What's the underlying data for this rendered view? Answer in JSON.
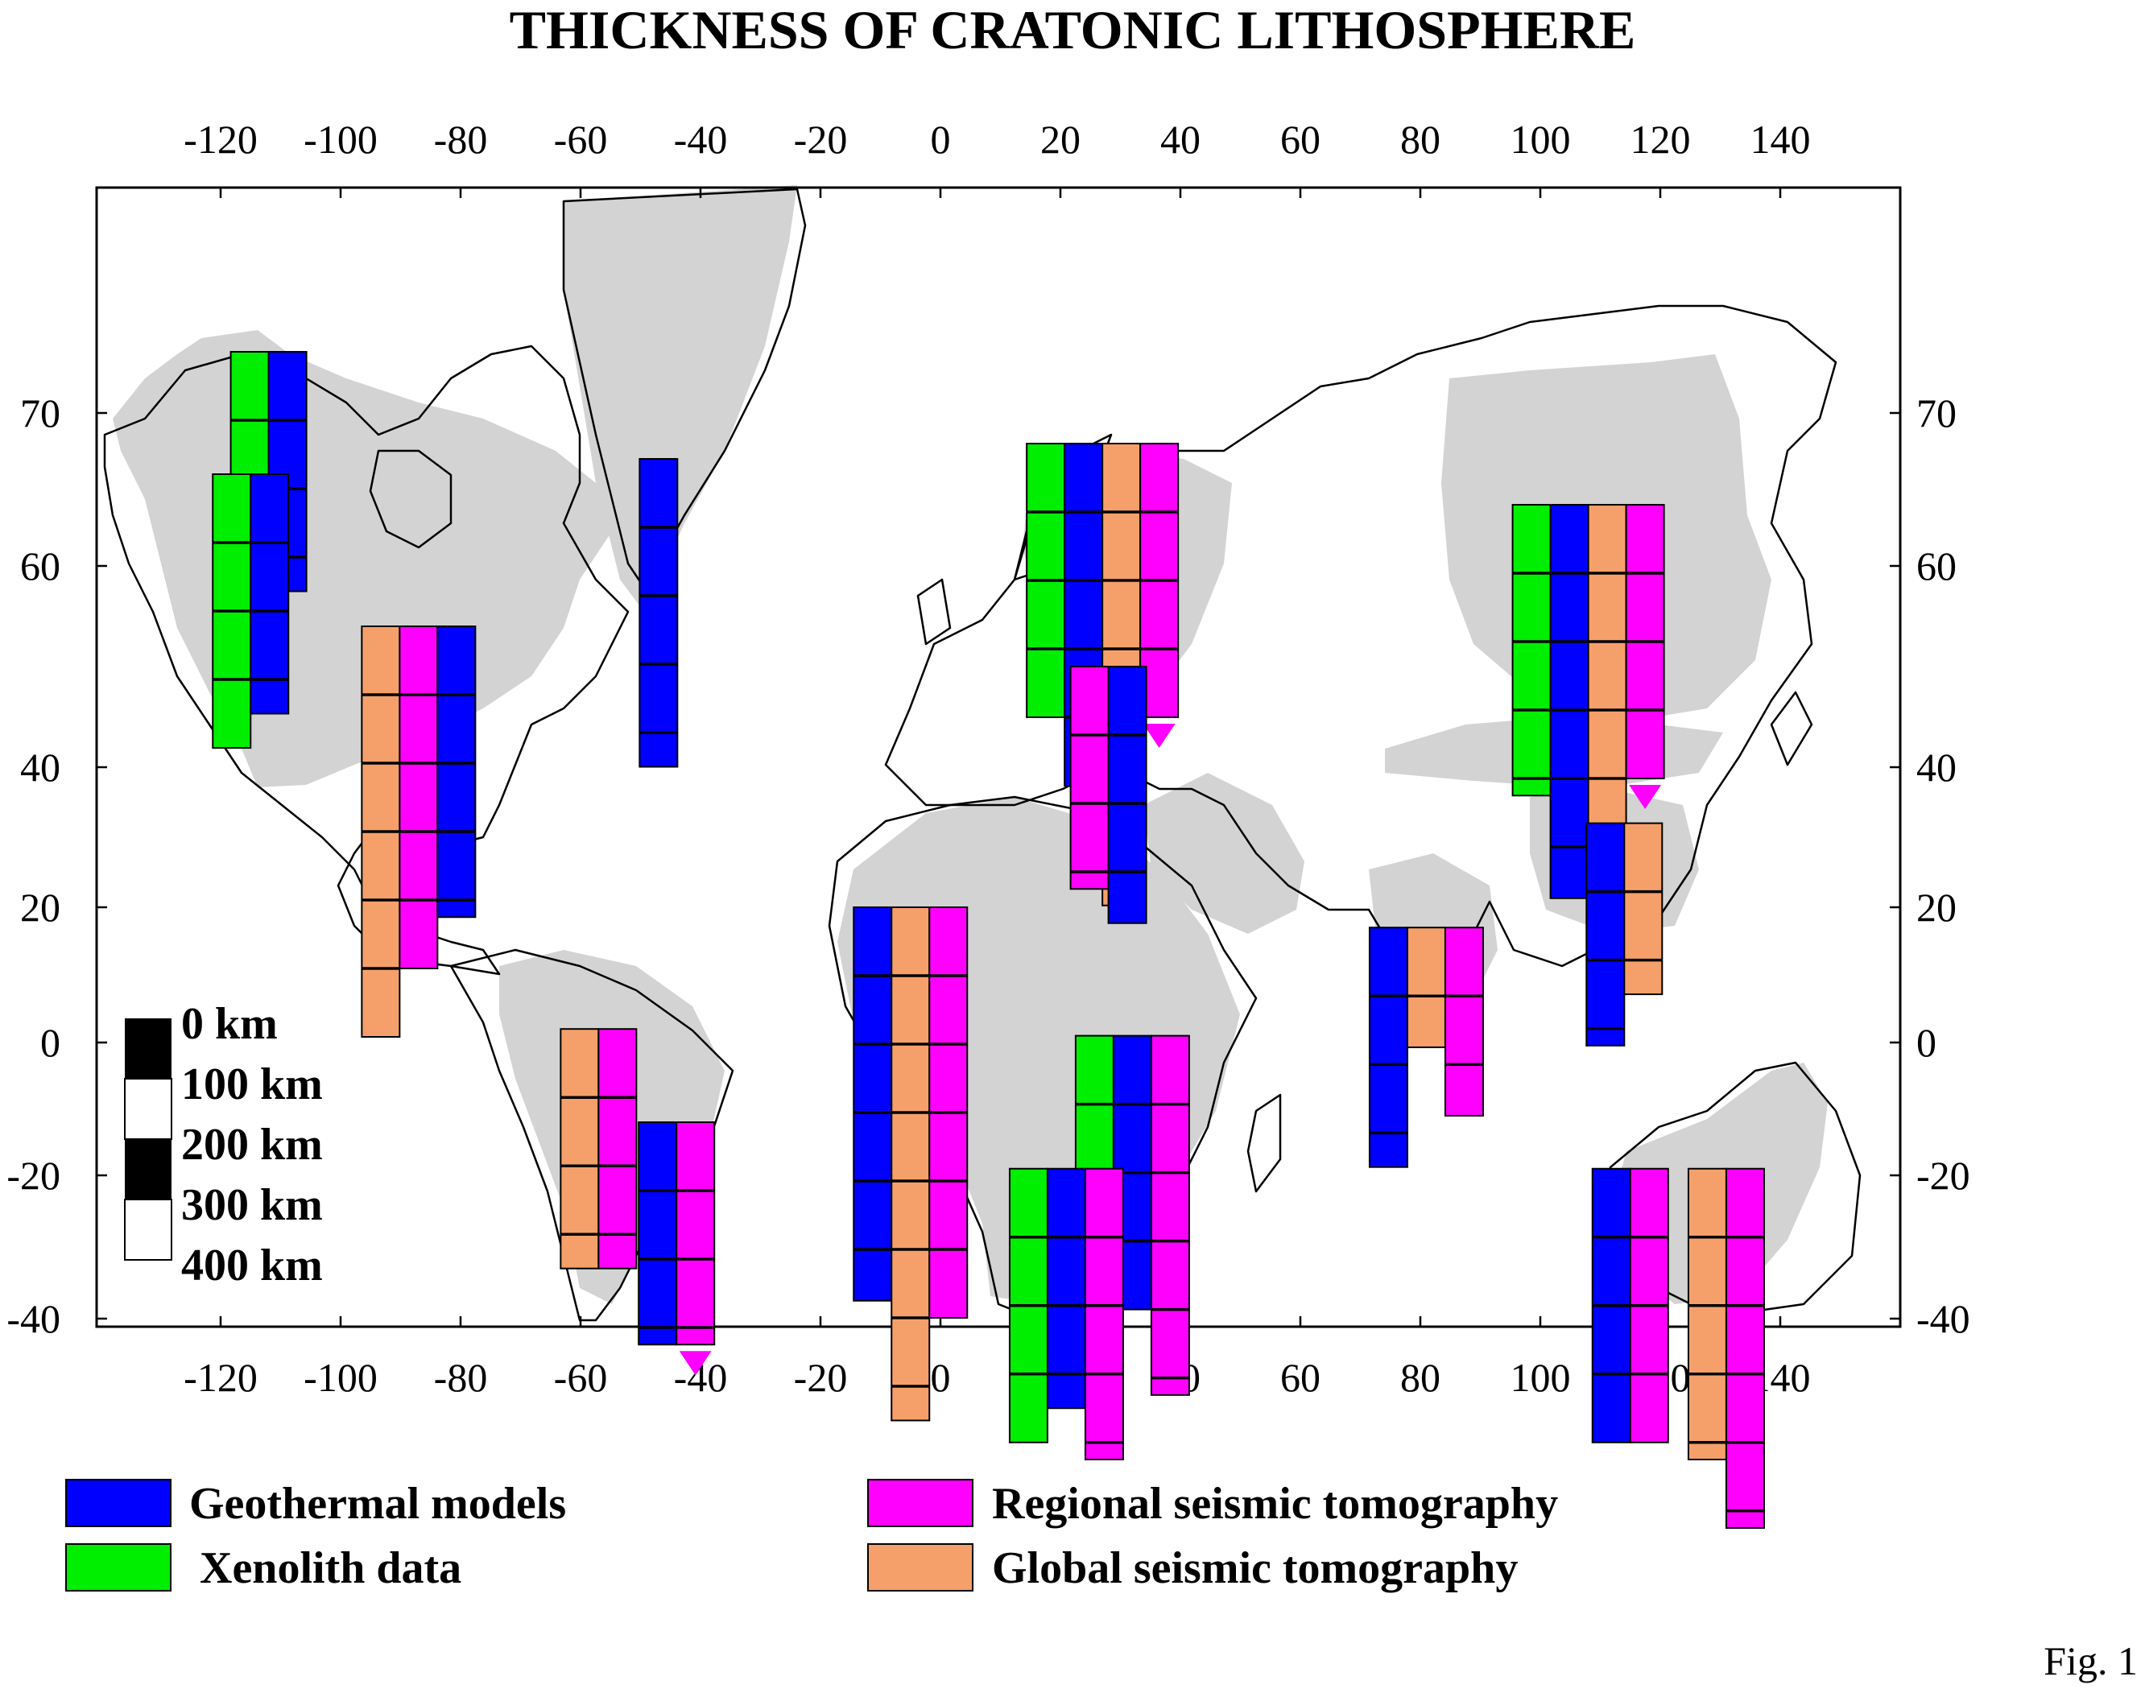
{
  "title": "THICKNESS  OF  CRATONIC  LITHOSPHERE",
  "figure_label": "Fig. 1",
  "axes": {
    "lon_ticks": [
      -120,
      -100,
      -80,
      -60,
      -40,
      -20,
      0,
      20,
      40,
      60,
      80,
      100,
      120,
      140
    ],
    "lat_ticks": [
      70,
      60,
      40,
      20,
      0,
      -20,
      -40
    ],
    "lon_range": [
      -140,
      160
    ],
    "lat_range": [
      -42,
      81
    ],
    "grid": false
  },
  "colors": {
    "geothermal": "#0000ff",
    "xenolith": "#00ee00",
    "regional": "#ff00ff",
    "global": "#f5a06a",
    "craton": "#d3d3d3",
    "xenolith_light": "#88f088",
    "global_light": "#f8bc98",
    "regional_light": "#ff66ee"
  },
  "legend": {
    "placement": "bottom",
    "items": [
      {
        "key": "geothermal",
        "label": "Geothermal models"
      },
      {
        "key": "xenolith",
        "label": "Xenolith data"
      },
      {
        "key": "regional",
        "label": "Regional seismic tomography"
      },
      {
        "key": "global",
        "label": "Global seismic tomography"
      }
    ]
  },
  "depth_scale": {
    "labels": [
      "0 km",
      "100 km",
      "200 km",
      "300 km",
      "400 km"
    ]
  },
  "chart_data": {
    "type": "map-bar-columns",
    "units": "km",
    "sites": [
      {
        "lon": -112,
        "lat": 74,
        "columns": [
          {
            "method": "xenolith",
            "thickness": 200
          },
          {
            "method": "geothermal",
            "thickness": 350
          }
        ]
      },
      {
        "lon": -115,
        "lat": 66,
        "columns": [
          {
            "method": "xenolith",
            "thickness": 400
          },
          {
            "method": "geothermal",
            "thickness": 350
          }
        ]
      },
      {
        "lon": -87,
        "lat": 54,
        "columns": [
          {
            "method": "global",
            "thickness": 600
          },
          {
            "method": "regional",
            "thickness": 500
          },
          {
            "method": "geothermal",
            "thickness": 425
          }
        ]
      },
      {
        "lon": -47,
        "lat": 67,
        "columns": [
          {
            "method": "geothermal",
            "thickness": 450
          }
        ]
      },
      {
        "lon": 27,
        "lat": 68,
        "columns": [
          {
            "method": "xenolith",
            "thickness": 400
          },
          {
            "method": "geothermal",
            "thickness": 500
          },
          {
            "method": "global",
            "thickness": 675
          },
          {
            "method": "regional",
            "thickness": 400
          }
        ],
        "arrow": "regional"
      },
      {
        "lon": 28,
        "lat": 50,
        "columns": [
          {
            "method": "regional",
            "thickness": 325
          },
          {
            "method": "geothermal",
            "thickness": 375
          }
        ]
      },
      {
        "lon": 108,
        "lat": 64,
        "columns": [
          {
            "method": "xenolith",
            "thickness": 425
          },
          {
            "method": "geothermal",
            "thickness": 575
          },
          {
            "method": "global",
            "thickness": 575
          },
          {
            "method": "regional",
            "thickness": 400
          }
        ],
        "arrow": "regional"
      },
      {
        "lon": 114,
        "lat": 32,
        "columns": [
          {
            "method": "geothermal",
            "thickness": 325
          },
          {
            "method": "global",
            "thickness": 250
          }
        ]
      },
      {
        "lon": 81,
        "lat": 17,
        "columns": [
          {
            "method": "geothermal",
            "thickness": 350
          },
          {
            "method": "global",
            "thickness": 175
          },
          {
            "method": "regional",
            "thickness": 275
          }
        ]
      },
      {
        "lon": -5,
        "lat": 20,
        "columns": [
          {
            "method": "geothermal",
            "thickness": 575
          },
          {
            "method": "global",
            "thickness": 750
          },
          {
            "method": "regional",
            "thickness": 600
          }
        ]
      },
      {
        "lon": 32,
        "lat": 1,
        "columns": [
          {
            "method": "xenolith",
            "thickness": 250
          },
          {
            "method": "geothermal",
            "thickness": 400
          },
          {
            "method": "regional",
            "thickness": 525
          }
        ]
      },
      {
        "lon": 21,
        "lat": -19,
        "columns": [
          {
            "method": "xenolith",
            "thickness": 400
          },
          {
            "method": "geothermal",
            "thickness": 350
          },
          {
            "method": "regional",
            "thickness": 425
          }
        ]
      },
      {
        "lon": -57,
        "lat": 2,
        "columns": [
          {
            "method": "global",
            "thickness": 350
          },
          {
            "method": "regional",
            "thickness": 350
          }
        ]
      },
      {
        "lon": -44,
        "lat": -12,
        "columns": [
          {
            "method": "geothermal",
            "thickness": 325
          },
          {
            "method": "regional",
            "thickness": 325
          }
        ],
        "arrow": "regional"
      },
      {
        "lon": 115,
        "lat": -19,
        "columns": [
          {
            "method": "geothermal",
            "thickness": 400
          },
          {
            "method": "regional",
            "thickness": 400
          }
        ]
      },
      {
        "lon": 131,
        "lat": -19,
        "columns": [
          {
            "method": "global",
            "thickness": 425
          },
          {
            "method": "regional",
            "thickness": 525
          }
        ]
      }
    ]
  }
}
